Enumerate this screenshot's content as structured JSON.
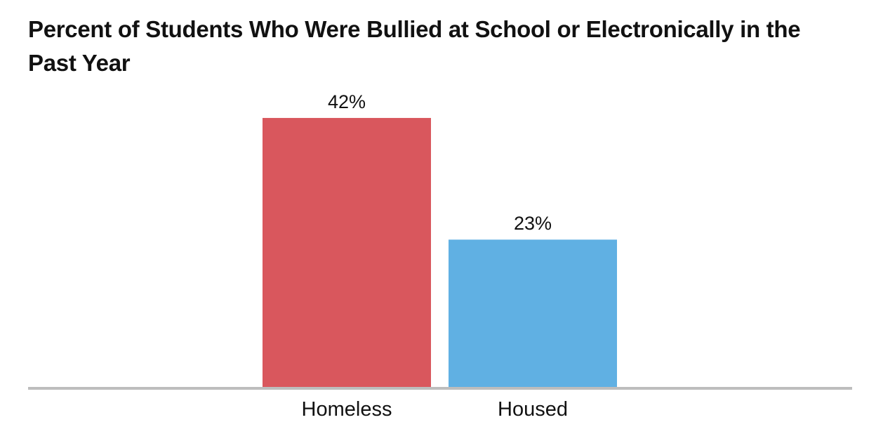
{
  "chart_data": {
    "type": "bar",
    "title": "Percent of Students Who Were Bullied at School or Electronically in the Past Year",
    "categories": [
      "Homeless",
      "Housed"
    ],
    "values": [
      42,
      23
    ],
    "value_labels": [
      "42%",
      "23%"
    ],
    "bar_colors": [
      "#d9575d",
      "#60b0e3"
    ],
    "axis_color": "#bdbdbd",
    "xlabel": "",
    "ylabel": "",
    "ylim": [
      0,
      50
    ],
    "grid": false,
    "legend": "none"
  }
}
